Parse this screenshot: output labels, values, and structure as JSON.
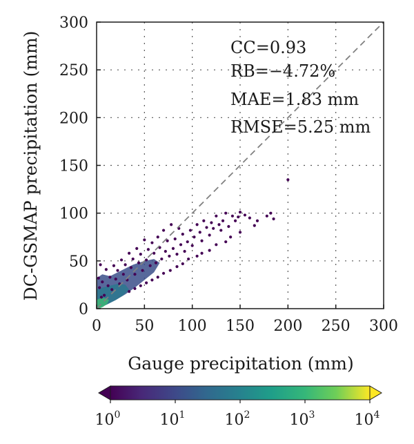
{
  "chart_data": {
    "type": "scatter",
    "title": "",
    "xlabel": "Gauge precipitation (mm)",
    "ylabel": "DC-GSMAP precipitation (mm)",
    "xlim": [
      0,
      300
    ],
    "ylim": [
      0,
      300
    ],
    "xticks": [
      "0",
      "50",
      "100",
      "150",
      "200",
      "250",
      "300"
    ],
    "yticks": [
      "0",
      "50",
      "100",
      "150",
      "200",
      "250",
      "300"
    ],
    "grid": true,
    "reference_line": "1:1 dashed",
    "statistics": [
      "CC=0.93",
      "RB=−4.72%",
      "MAE=1.83 mm",
      "RMSE=5.25 mm"
    ],
    "colorbar": {
      "colormap": "viridis",
      "scale": "log",
      "range": [
        1,
        10000
      ],
      "ticks": [
        {
          "base": "10",
          "exp": "0"
        },
        {
          "base": "10",
          "exp": "1"
        },
        {
          "base": "10",
          "exp": "2"
        },
        {
          "base": "10",
          "exp": "3"
        },
        {
          "base": "10",
          "exp": "4"
        }
      ],
      "colors": [
        "#440154",
        "#3b528b",
        "#21918c",
        "#5ec962",
        "#fde725"
      ]
    },
    "points": [
      [
        200,
        135
      ],
      [
        185,
        94
      ],
      [
        182,
        100
      ],
      [
        178,
        97
      ],
      [
        168,
        92
      ],
      [
        165,
        87
      ],
      [
        160,
        95
      ],
      [
        155,
        98
      ],
      [
        150,
        101
      ],
      [
        148,
        96
      ],
      [
        145,
        92
      ],
      [
        142,
        97
      ],
      [
        138,
        86
      ],
      [
        135,
        100
      ],
      [
        132,
        92
      ],
      [
        130,
        82
      ],
      [
        128,
        88
      ],
      [
        125,
        97
      ],
      [
        122,
        84
      ],
      [
        120,
        90
      ],
      [
        118,
        77
      ],
      [
        115,
        85
      ],
      [
        112,
        92
      ],
      [
        110,
        71
      ],
      [
        108,
        80
      ],
      [
        105,
        88
      ],
      [
        102,
        75
      ],
      [
        100,
        66
      ],
      [
        98,
        82
      ],
      [
        95,
        70
      ],
      [
        92,
        60
      ],
      [
        90,
        78
      ],
      [
        88,
        67
      ],
      [
        86,
        84
      ],
      [
        84,
        57
      ],
      [
        82,
        73
      ],
      [
        80,
        63
      ],
      [
        78,
        88
      ],
      [
        76,
        55
      ],
      [
        74,
        71
      ],
      [
        72,
        60
      ],
      [
        70,
        82
      ],
      [
        68,
        52
      ],
      [
        66,
        64
      ],
      [
        64,
        75
      ],
      [
        62,
        48
      ],
      [
        60,
        58
      ],
      [
        58,
        69
      ],
      [
        56,
        45
      ],
      [
        54,
        62
      ],
      [
        52,
        51
      ],
      [
        50,
        72
      ],
      [
        48,
        40
      ],
      [
        46,
        57
      ],
      [
        44,
        48
      ],
      [
        42,
        63
      ],
      [
        40,
        36
      ],
      [
        38,
        52
      ],
      [
        36,
        43
      ],
      [
        34,
        58
      ],
      [
        32,
        30
      ],
      [
        30,
        46
      ],
      [
        28,
        36
      ],
      [
        26,
        51
      ],
      [
        24,
        26
      ],
      [
        22,
        40
      ],
      [
        20,
        31
      ],
      [
        18,
        45
      ],
      [
        16,
        20
      ],
      [
        14,
        33
      ],
      [
        12,
        24
      ],
      [
        10,
        41
      ],
      [
        8,
        14
      ],
      [
        6,
        28
      ],
      [
        5,
        12
      ],
      [
        4,
        46
      ],
      [
        3,
        22
      ],
      [
        2,
        32
      ],
      [
        150,
        80
      ],
      [
        140,
        75
      ],
      [
        135,
        70
      ],
      [
        125,
        67
      ],
      [
        118,
        61
      ],
      [
        110,
        58
      ],
      [
        105,
        55
      ],
      [
        96,
        52
      ],
      [
        90,
        47
      ],
      [
        84,
        44
      ],
      [
        77,
        40
      ],
      [
        70,
        37
      ],
      [
        64,
        33
      ],
      [
        58,
        30
      ],
      [
        52,
        27
      ],
      [
        46,
        24
      ],
      [
        40,
        21
      ],
      [
        34,
        18
      ]
    ]
  }
}
